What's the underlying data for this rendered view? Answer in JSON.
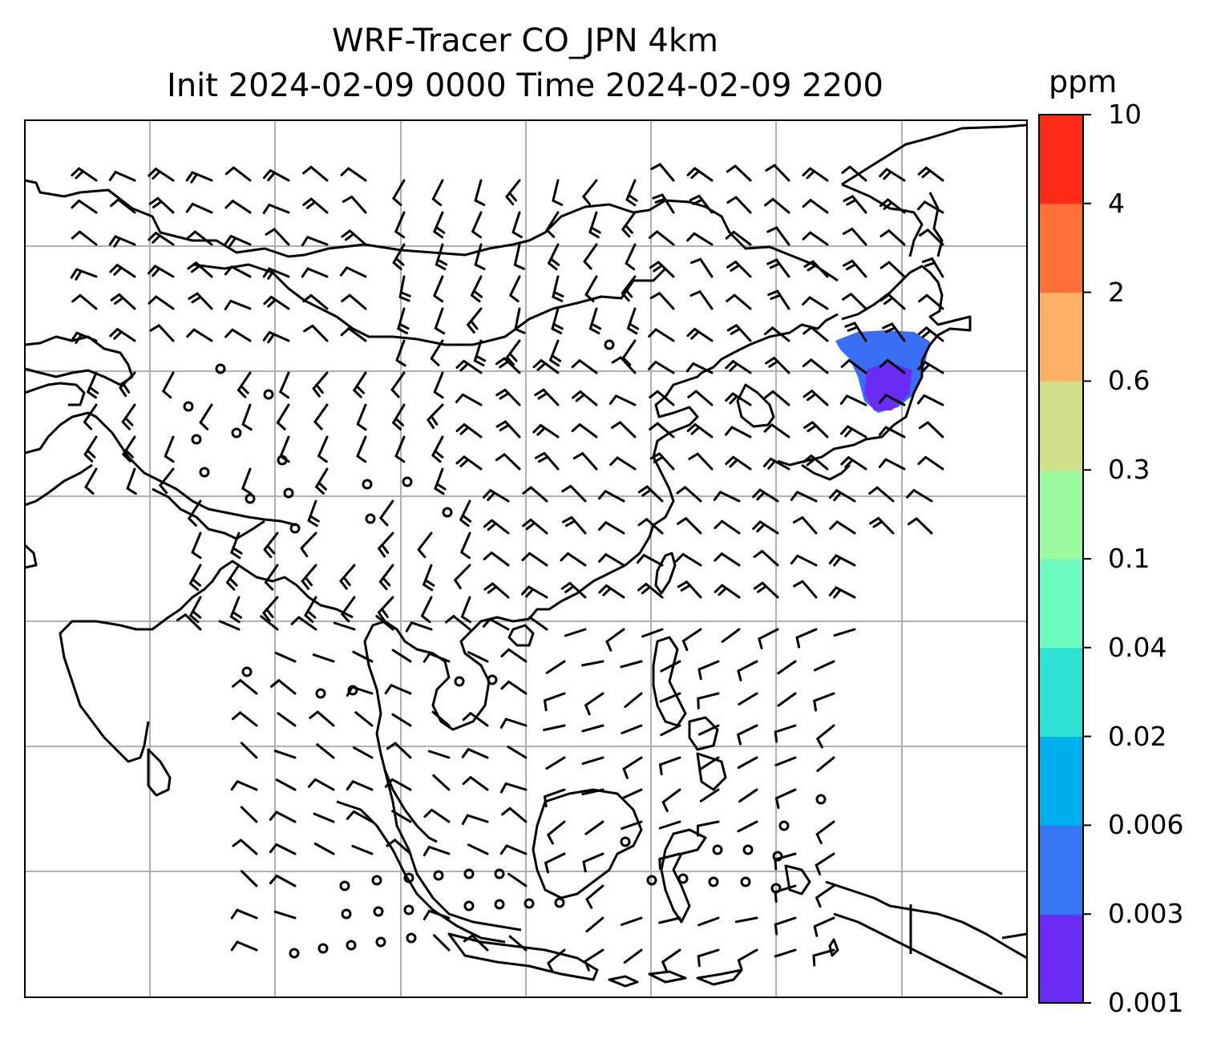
{
  "title_line1": "WRF-Tracer CO_JPN 4km",
  "title_line2": "Init 2024-02-09 0000 Time 2024-02-09 2200",
  "colorbar": {
    "unit": "ppm",
    "levels": [
      "0.001",
      "0.003",
      "0.006",
      "0.02",
      "0.04",
      "0.1",
      "0.3",
      "0.6",
      "2",
      "4",
      "10"
    ],
    "colors": [
      "#6a2cf5",
      "#3677f3",
      "#00b0ee",
      "#2ee2d3",
      "#6cfac0",
      "#9cfa9e",
      "#d0e08a",
      "#fcb164",
      "#ff7039",
      "#ff2b17"
    ]
  },
  "map": {
    "background": "#ffffff",
    "gridline_color": "#b0b0b0",
    "coastline_color": "#000000",
    "plume_colors": [
      "#3a6ef5",
      "#6a2cf5"
    ]
  }
}
